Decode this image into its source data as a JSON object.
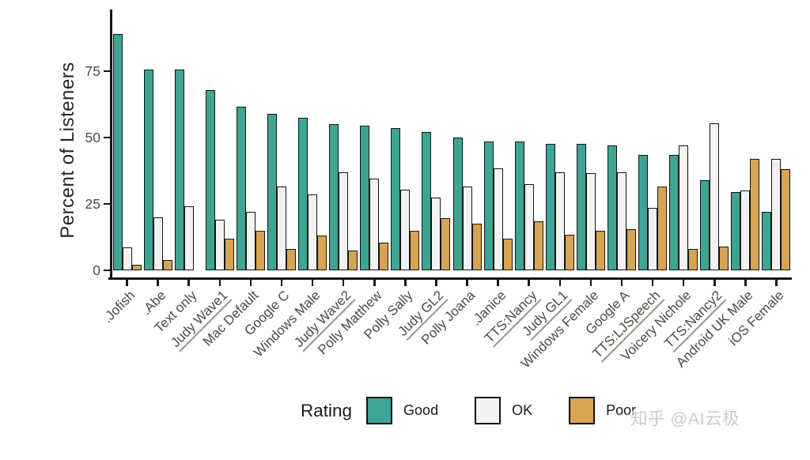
{
  "chart_data": {
    "type": "bar",
    "title": "",
    "xlabel": "",
    "ylabel": "Percent of Listeners",
    "ylim": [
      0,
      97
    ],
    "yticks": [
      0,
      25,
      50,
      75
    ],
    "grid": false,
    "legend_title": "Rating",
    "legend_position": "bottom",
    "categories": [
      ".Jofish",
      ".Abe",
      "Text only",
      "Judy Wave1",
      "Mac Default",
      "Google C",
      "Windows Male",
      "Judy Wave2",
      "Polly Matthew",
      "Polly Sally",
      "Judy GL2",
      "Polly Joana",
      ".Janice",
      "TTS:Nancy",
      "Judy GL1",
      "Windows Female",
      "Google A",
      "TTS:LJSpeech",
      "Voicery Nichole",
      "TTS:Nancy2",
      "Android UK Male",
      "iOS Female"
    ],
    "underlined_categories": [
      "Judy Wave1",
      "Judy Wave2",
      "Judy GL2",
      "TTS:Nancy",
      "Judy GL1",
      "TTS:LJSpeech",
      "TTS:Nancy2"
    ],
    "series": [
      {
        "name": "Good",
        "color": "#3EA493",
        "values": [
          89,
          75.5,
          75.5,
          68,
          61.5,
          59,
          57.5,
          55,
          54.5,
          53.5,
          52,
          50,
          48.5,
          48.5,
          47.5,
          47.5,
          47,
          43.5,
          43.5,
          34,
          29.5,
          22
        ]
      },
      {
        "name": "OK",
        "color": "#F2F2F0",
        "values": [
          8.5,
          20,
          24,
          19,
          22,
          31.5,
          28.5,
          37,
          34.5,
          30.5,
          27.5,
          31.5,
          38.5,
          32.5,
          37,
          36.5,
          37,
          23.5,
          47,
          55.5,
          30,
          42
        ]
      },
      {
        "name": "Poor",
        "color": "#D6A452",
        "values": [
          2,
          4,
          0,
          12,
          15,
          8,
          13,
          7.5,
          10.5,
          15,
          19.5,
          17.5,
          12,
          18.5,
          13.5,
          15,
          15.5,
          31.5,
          8,
          9,
          42,
          38
        ]
      }
    ]
  },
  "watermark": "知乎 @AI云极",
  "colors": {
    "axis": "#141414",
    "tick_label": "#4a4a4a",
    "underline": "#9b9486",
    "watermark": "#cbcbcb"
  }
}
